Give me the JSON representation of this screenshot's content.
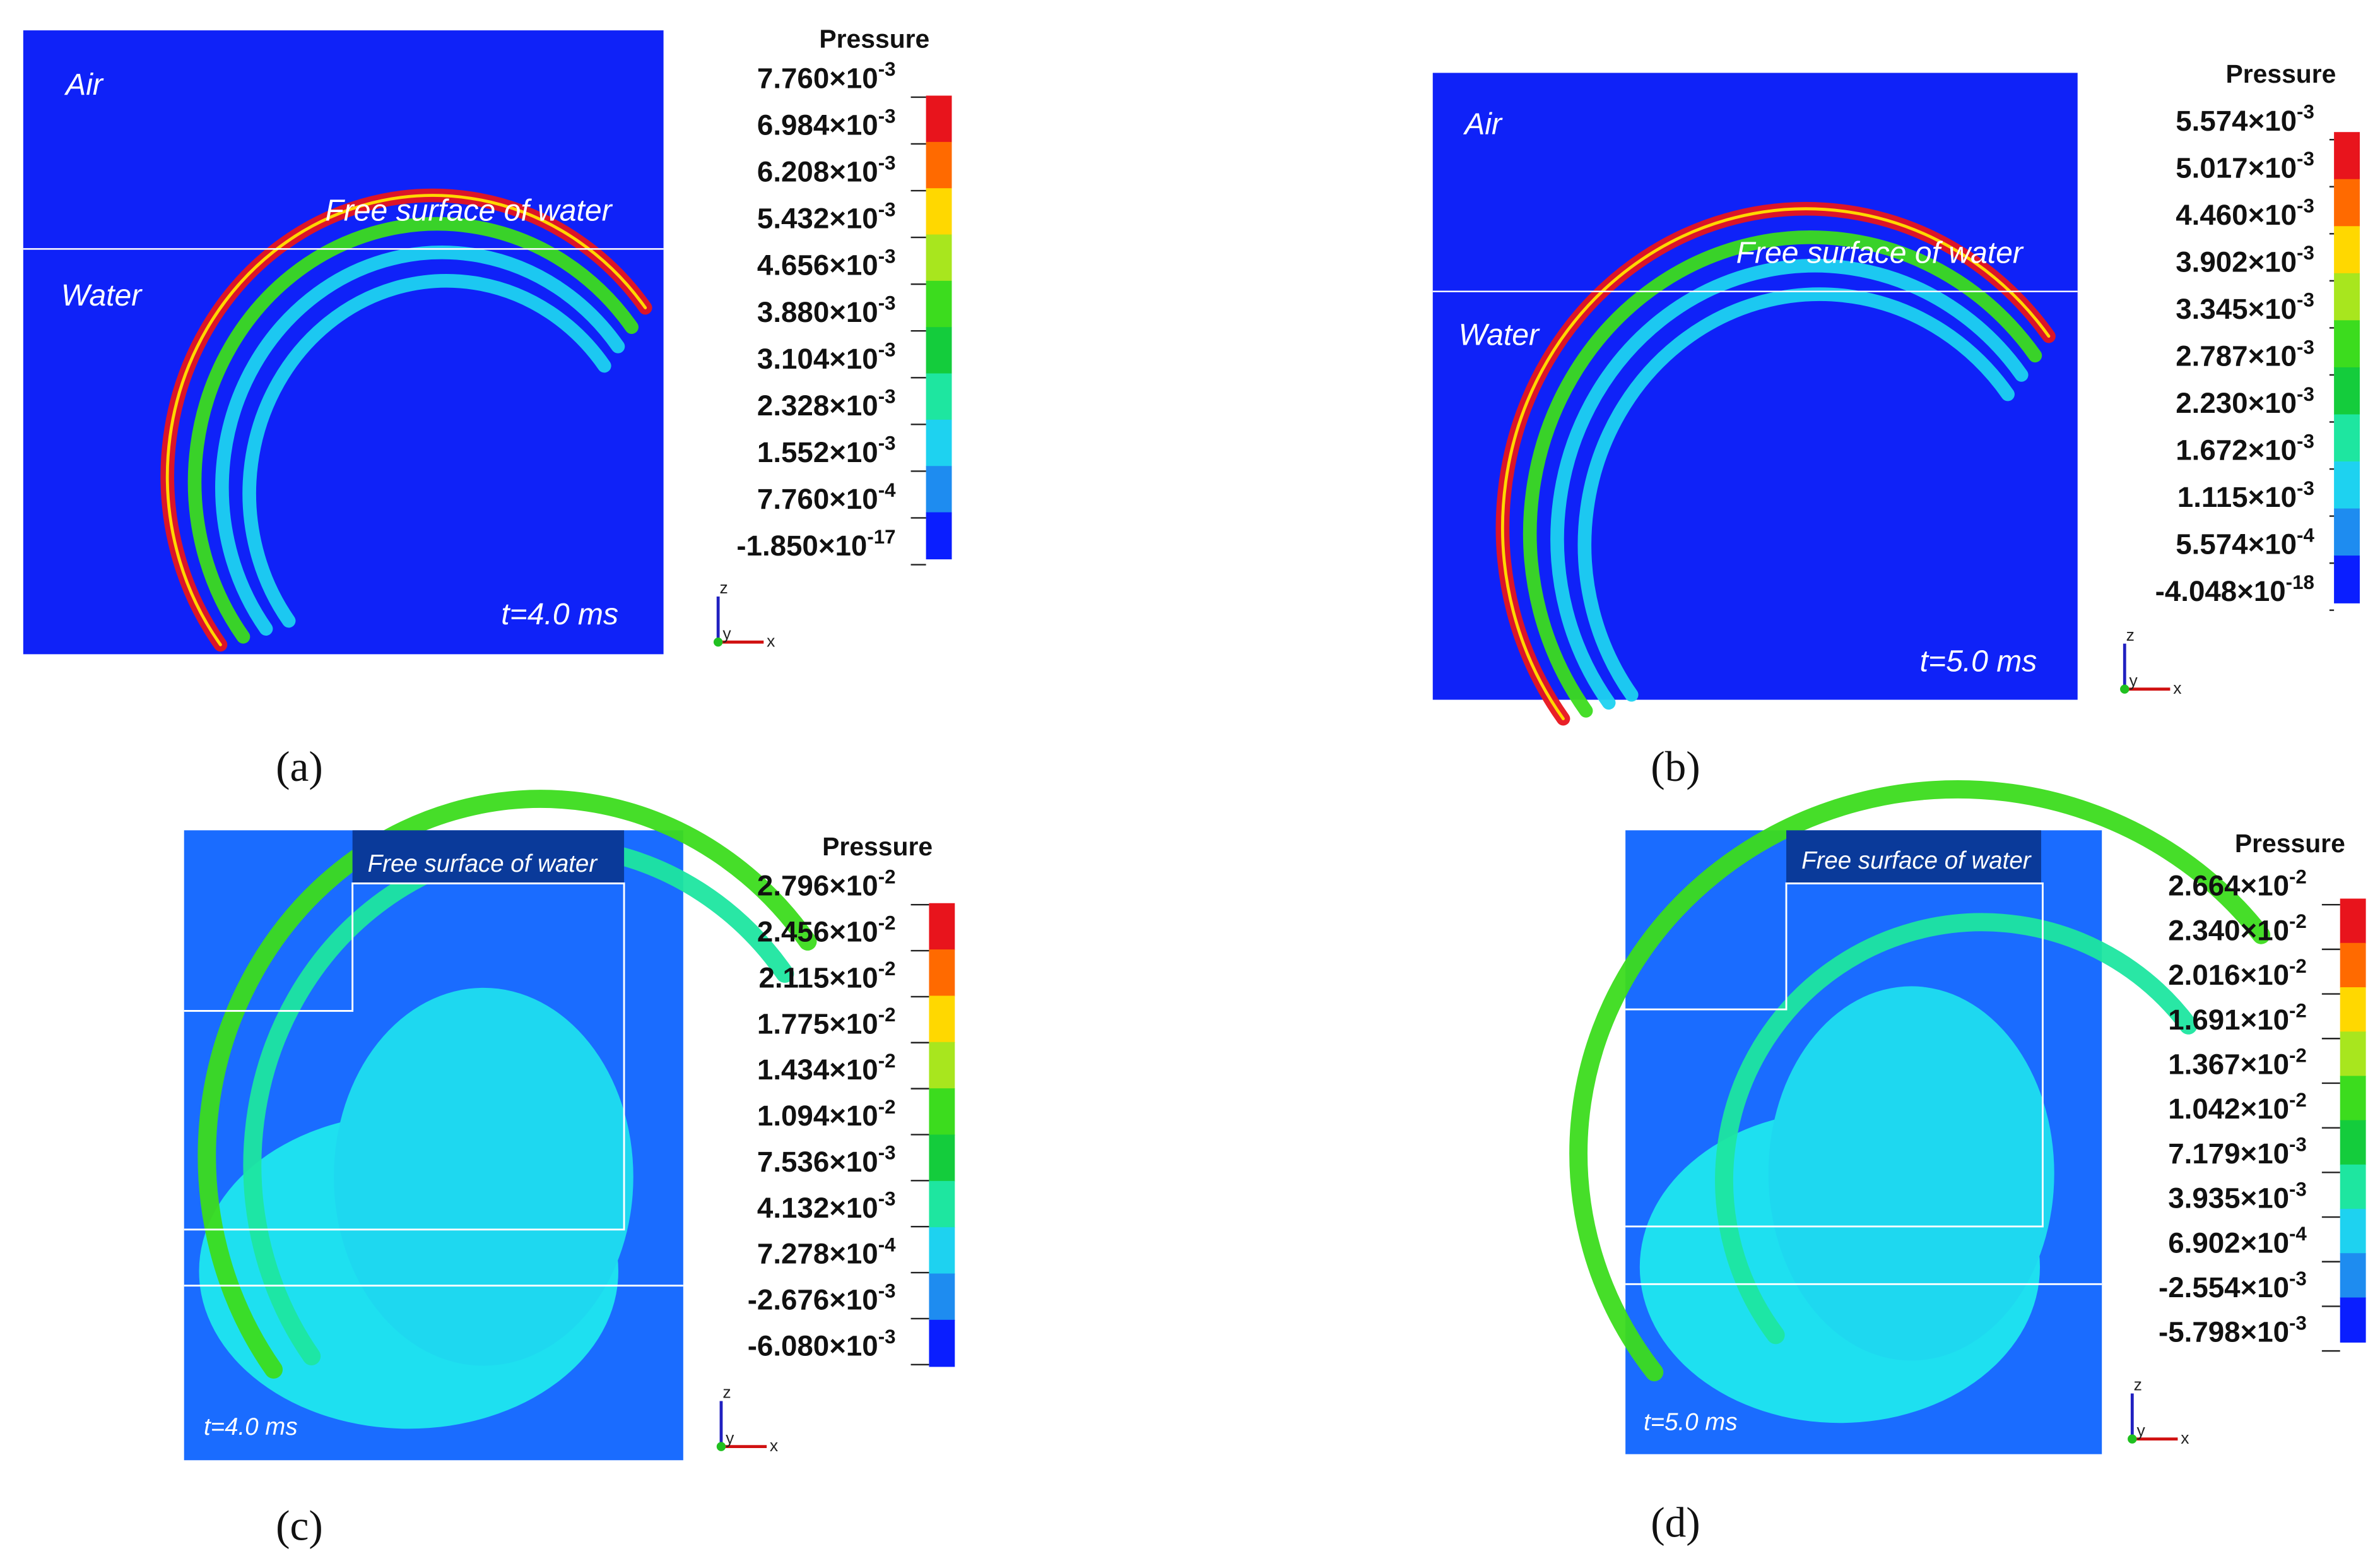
{
  "panels": [
    {
      "caption": "(a)",
      "annotations": [
        "Air",
        "Water",
        "Free surface of water",
        "t=4.0 ms"
      ],
      "colorbar": {
        "title": "Pressure",
        "ticks": [
          {
            "text": "7.760×10",
            "exp": "-3"
          },
          {
            "text": "6.984×10",
            "exp": "-3"
          },
          {
            "text": "6.208×10",
            "exp": "-3"
          },
          {
            "text": "5.432×10",
            "exp": "-3"
          },
          {
            "text": "4.656×10",
            "exp": "-3"
          },
          {
            "text": "3.880×10",
            "exp": "-3"
          },
          {
            "text": "3.104×10",
            "exp": "-3"
          },
          {
            "text": "2.328×10",
            "exp": "-3"
          },
          {
            "text": "1.552×10",
            "exp": "-3"
          },
          {
            "text": "7.760×10",
            "exp": "-4"
          },
          {
            "text": "-1.850×10",
            "exp": "-17"
          }
        ]
      },
      "axes": [
        "z",
        "y",
        "x"
      ]
    },
    {
      "caption": "(b)",
      "annotations": [
        "Air",
        "Water",
        "Free surface of water",
        "t=5.0 ms"
      ],
      "colorbar": {
        "title": "Pressure",
        "ticks": [
          {
            "text": "5.574×10",
            "exp": "-3"
          },
          {
            "text": "5.017×10",
            "exp": "-3"
          },
          {
            "text": "4.460×10",
            "exp": "-3"
          },
          {
            "text": "3.902×10",
            "exp": "-3"
          },
          {
            "text": "3.345×10",
            "exp": "-3"
          },
          {
            "text": "2.787×10",
            "exp": "-3"
          },
          {
            "text": "2.230×10",
            "exp": "-3"
          },
          {
            "text": "1.672×10",
            "exp": "-3"
          },
          {
            "text": "1.115×10",
            "exp": "-3"
          },
          {
            "text": "5.574×10",
            "exp": "-4"
          },
          {
            "text": "-4.048×10",
            "exp": "-18"
          }
        ]
      },
      "axes": [
        "z",
        "y",
        "x"
      ]
    },
    {
      "caption": "(c)",
      "annotations": [
        "Free surface of water",
        "t=4.0 ms"
      ],
      "colorbar": {
        "title": "Pressure",
        "ticks": [
          {
            "text": "2.796×10",
            "exp": "-2"
          },
          {
            "text": "2.456×10",
            "exp": "-2"
          },
          {
            "text": "2.115×10",
            "exp": "-2"
          },
          {
            "text": "1.775×10",
            "exp": "-2"
          },
          {
            "text": "1.434×10",
            "exp": "-2"
          },
          {
            "text": "1.094×10",
            "exp": "-2"
          },
          {
            "text": "7.536×10",
            "exp": "-3"
          },
          {
            "text": "4.132×10",
            "exp": "-3"
          },
          {
            "text": "7.278×10",
            "exp": "-4"
          },
          {
            "text": "-2.676×10",
            "exp": "-3"
          },
          {
            "text": "-6.080×10",
            "exp": "-3"
          }
        ]
      },
      "axes": [
        "z",
        "y",
        "x"
      ]
    },
    {
      "caption": "(d)",
      "annotations": [
        "Free surface of water",
        "t=5.0 ms"
      ],
      "colorbar": {
        "title": "Pressure",
        "ticks": [
          {
            "text": "2.664×10",
            "exp": "-2"
          },
          {
            "text": "2.340×10",
            "exp": "-2"
          },
          {
            "text": "2.016×10",
            "exp": "-2"
          },
          {
            "text": "1.691×10",
            "exp": "-2"
          },
          {
            "text": "1.367×10",
            "exp": "-2"
          },
          {
            "text": "1.042×10",
            "exp": "-2"
          },
          {
            "text": "7.179×10",
            "exp": "-3"
          },
          {
            "text": "3.935×10",
            "exp": "-3"
          },
          {
            "text": "6.902×10",
            "exp": "-4"
          },
          {
            "text": "-2.554×10",
            "exp": "-3"
          },
          {
            "text": "-5.798×10",
            "exp": "-3"
          }
        ]
      },
      "axes": [
        "z",
        "y",
        "x"
      ]
    }
  ]
}
